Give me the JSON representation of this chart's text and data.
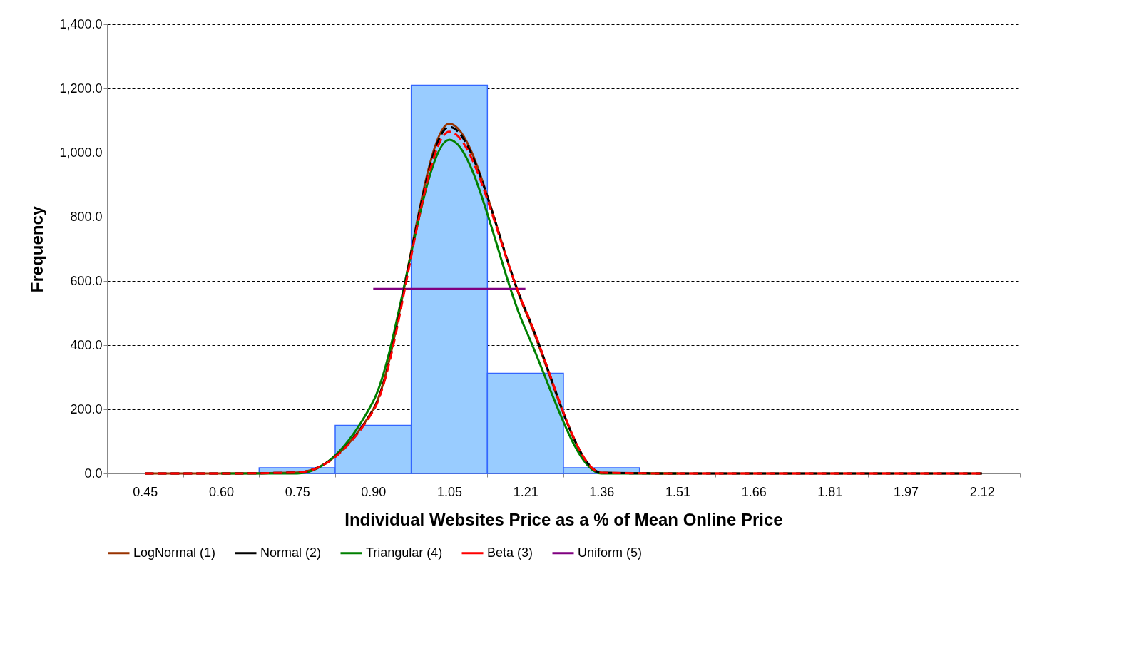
{
  "chart_data": {
    "type": "bar",
    "xlabel": "Individual Websites Price as a % of Mean Online Price",
    "ylabel": "Frequency",
    "categories": [
      "0.45",
      "0.60",
      "0.75",
      "0.90",
      "1.05",
      "1.21",
      "1.36",
      "1.51",
      "1.66",
      "1.81",
      "1.97",
      "2.12"
    ],
    "series": [
      {
        "color": "#99ccff",
        "values": [
          0,
          0,
          18,
          150,
          1210,
          312,
          18,
          0,
          0,
          0,
          0,
          0
        ]
      },
      {
        "type": "line",
        "name": "LogNormal (1)",
        "color": "#993300",
        "line_style": "solid",
        "values": [
          0,
          0,
          3,
          200,
          1090,
          505,
          2,
          0,
          0,
          0,
          0,
          0
        ]
      },
      {
        "type": "line",
        "name": "Normal (2)",
        "color": "#000000",
        "line_style": "dashed",
        "values": [
          0,
          0,
          3,
          198,
          1080,
          510,
          2,
          0,
          0,
          0,
          0,
          0
        ]
      },
      {
        "type": "line",
        "name": "Triangular (4)",
        "color": "#008000",
        "line_style": "solid",
        "values": [
          null,
          0,
          0,
          225,
          1040,
          450,
          0,
          0,
          null,
          null,
          null,
          null
        ]
      },
      {
        "type": "line",
        "name": "Beta (3)",
        "color": "#ff0000",
        "line_style": "dashed",
        "values": [
          0,
          0,
          3,
          195,
          1065,
          510,
          2,
          0,
          0,
          0,
          0,
          0
        ]
      },
      {
        "type": "line",
        "name": "Uniform (5)",
        "color": "#800080",
        "line_style": "solid",
        "values": [
          null,
          null,
          null,
          575,
          575,
          575,
          null,
          null,
          null,
          null,
          null,
          null
        ]
      }
    ],
    "ylim": [
      0,
      1400
    ],
    "yticks": [
      {
        "value": 0,
        "label": "0.0"
      },
      {
        "value": 200,
        "label": "200.0"
      },
      {
        "value": 400,
        "label": "400.0"
      },
      {
        "value": 600,
        "label": "600.0"
      },
      {
        "value": 800,
        "label": "800.0"
      },
      {
        "value": 1000,
        "label": "1,000.0"
      },
      {
        "value": 1200,
        "label": "1,200.0"
      },
      {
        "value": 1400,
        "label": "1,400.0"
      }
    ],
    "grid": "y",
    "legend": "bottom"
  }
}
